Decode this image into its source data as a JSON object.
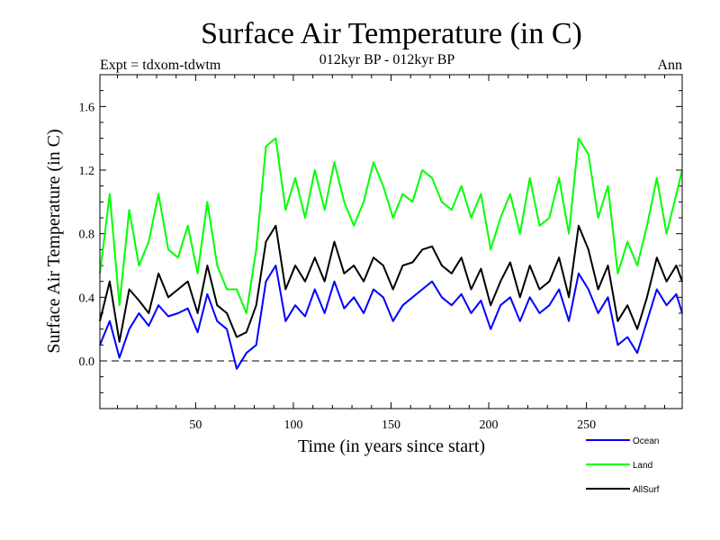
{
  "chart_data": {
    "type": "line",
    "title": "Surface Air Temperature (in C)",
    "subtitle": "012kyr BP - 012kyr BP",
    "expt_label": "Expt = tdxom-tdwtm",
    "season_label": "Ann",
    "xlabel": "Time (in years since start)",
    "ylabel": "Surface Air Temperature (in C)",
    "xlim": [
      1,
      299
    ],
    "ylim": [
      -0.3,
      1.8
    ],
    "xticks": [
      50,
      100,
      150,
      200,
      250
    ],
    "xtick_labels": [
      "50",
      "100",
      "150",
      "200",
      "250"
    ],
    "yticks": [
      0.0,
      0.4,
      0.8,
      1.2,
      1.6
    ],
    "ytick_labels": [
      "0.0",
      "0.4",
      "0.8",
      "1.2",
      "1.6"
    ],
    "zero_line": 0.0,
    "legend_position": "bottom-right below plot",
    "series": [
      {
        "name": "Ocean",
        "color": "#0000ff",
        "x": [
          1,
          6,
          11,
          16,
          21,
          26,
          31,
          36,
          41,
          46,
          51,
          56,
          61,
          66,
          71,
          76,
          81,
          86,
          91,
          96,
          101,
          106,
          111,
          116,
          121,
          126,
          131,
          136,
          141,
          146,
          151,
          156,
          161,
          166,
          171,
          176,
          181,
          186,
          191,
          196,
          201,
          206,
          211,
          216,
          221,
          226,
          231,
          236,
          241,
          246,
          251,
          256,
          261,
          266,
          271,
          276,
          281,
          286,
          291,
          296,
          299
        ],
        "values": [
          0.1,
          0.25,
          0.02,
          0.2,
          0.3,
          0.22,
          0.35,
          0.28,
          0.3,
          0.33,
          0.18,
          0.42,
          0.25,
          0.2,
          -0.05,
          0.05,
          0.1,
          0.5,
          0.6,
          0.25,
          0.35,
          0.28,
          0.45,
          0.3,
          0.5,
          0.33,
          0.4,
          0.3,
          0.45,
          0.4,
          0.25,
          0.35,
          0.4,
          0.45,
          0.5,
          0.4,
          0.35,
          0.42,
          0.3,
          0.38,
          0.2,
          0.35,
          0.4,
          0.25,
          0.4,
          0.3,
          0.35,
          0.45,
          0.25,
          0.55,
          0.45,
          0.3,
          0.4,
          0.1,
          0.15,
          0.05,
          0.25,
          0.45,
          0.35,
          0.42,
          0.3
        ]
      },
      {
        "name": "Land",
        "color": "#00ff00",
        "x": [
          1,
          6,
          11,
          16,
          21,
          26,
          31,
          36,
          41,
          46,
          51,
          56,
          61,
          66,
          71,
          76,
          81,
          86,
          91,
          96,
          101,
          106,
          111,
          116,
          121,
          126,
          131,
          136,
          141,
          146,
          151,
          156,
          161,
          166,
          171,
          176,
          181,
          186,
          191,
          196,
          201,
          206,
          211,
          216,
          221,
          226,
          231,
          236,
          241,
          246,
          251,
          256,
          261,
          266,
          271,
          276,
          281,
          286,
          291,
          296,
          299
        ],
        "values": [
          0.55,
          1.05,
          0.35,
          0.95,
          0.6,
          0.75,
          1.05,
          0.7,
          0.65,
          0.85,
          0.55,
          1.0,
          0.6,
          0.45,
          0.45,
          0.3,
          0.7,
          1.35,
          1.4,
          0.95,
          1.15,
          0.9,
          1.2,
          0.95,
          1.25,
          1.0,
          0.85,
          1.0,
          1.25,
          1.1,
          0.9,
          1.05,
          1.0,
          1.2,
          1.15,
          1.0,
          0.95,
          1.1,
          0.9,
          1.05,
          0.7,
          0.9,
          1.05,
          0.8,
          1.15,
          0.85,
          0.9,
          1.15,
          0.8,
          1.4,
          1.3,
          0.9,
          1.1,
          0.55,
          0.75,
          0.6,
          0.85,
          1.15,
          0.8,
          1.05,
          1.2
        ]
      },
      {
        "name": "AllSurf",
        "color": "#000000",
        "x": [
          1,
          6,
          11,
          16,
          21,
          26,
          31,
          36,
          41,
          46,
          51,
          56,
          61,
          66,
          71,
          76,
          81,
          86,
          91,
          96,
          101,
          106,
          111,
          116,
          121,
          126,
          131,
          136,
          141,
          146,
          151,
          156,
          161,
          166,
          171,
          176,
          181,
          186,
          191,
          196,
          201,
          206,
          211,
          216,
          221,
          226,
          231,
          236,
          241,
          246,
          251,
          256,
          261,
          266,
          271,
          276,
          281,
          286,
          291,
          296,
          299
        ],
        "values": [
          0.25,
          0.5,
          0.12,
          0.45,
          0.38,
          0.3,
          0.55,
          0.4,
          0.45,
          0.5,
          0.3,
          0.6,
          0.35,
          0.3,
          0.15,
          0.18,
          0.35,
          0.75,
          0.85,
          0.45,
          0.6,
          0.5,
          0.65,
          0.5,
          0.75,
          0.55,
          0.6,
          0.5,
          0.65,
          0.6,
          0.45,
          0.6,
          0.62,
          0.7,
          0.72,
          0.6,
          0.55,
          0.65,
          0.45,
          0.58,
          0.35,
          0.5,
          0.62,
          0.4,
          0.6,
          0.45,
          0.5,
          0.65,
          0.4,
          0.85,
          0.7,
          0.45,
          0.6,
          0.25,
          0.35,
          0.2,
          0.4,
          0.65,
          0.5,
          0.6,
          0.5
        ]
      }
    ]
  }
}
